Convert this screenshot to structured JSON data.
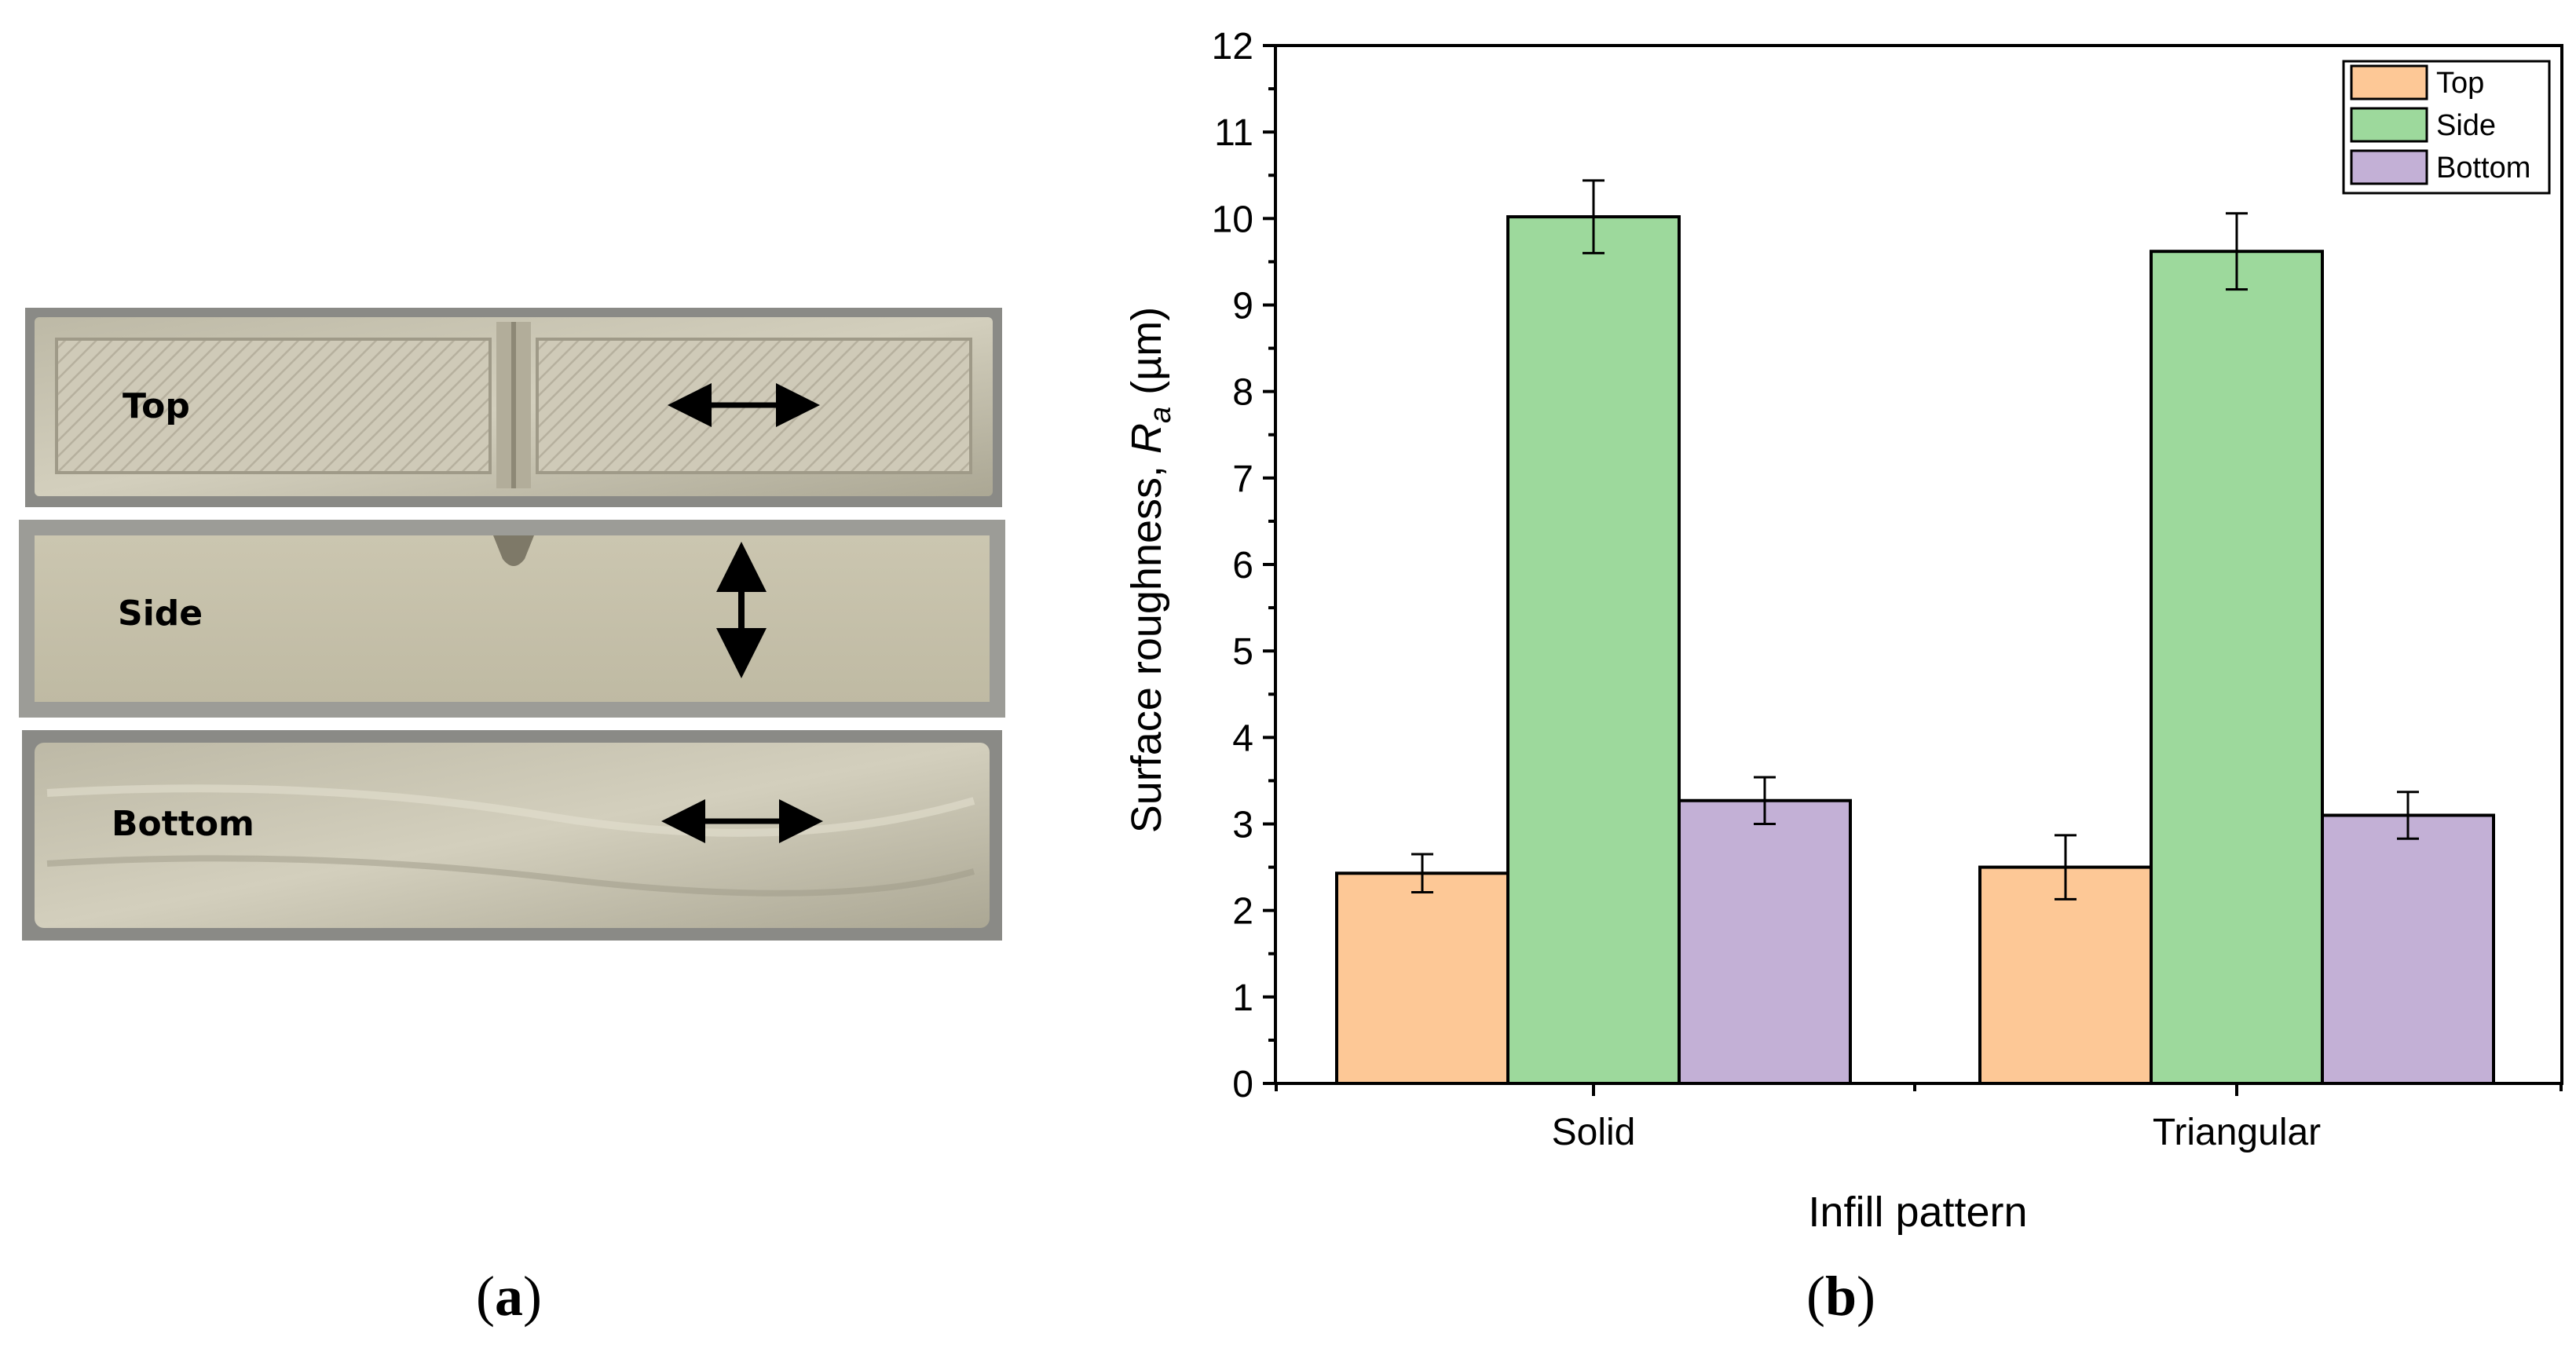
{
  "panel_a": {
    "caption_open": "(",
    "caption_letter": "a",
    "caption_close": ")",
    "specimens": [
      {
        "label": "Top",
        "arrow": "horizontal"
      },
      {
        "label": "Side",
        "arrow": "vertical"
      },
      {
        "label": "Bottom",
        "arrow": "horizontal"
      }
    ]
  },
  "panel_b": {
    "caption_open": "(",
    "caption_letter": "b",
    "caption_close": ")"
  },
  "colors": {
    "top": "#fdc896",
    "side": "#9dd99c",
    "bottom": "#c3b0d6"
  },
  "chart_data": {
    "type": "bar",
    "categories": [
      "Solid",
      "Triangular"
    ],
    "series": [
      {
        "name": "Top",
        "values": [
          2.43,
          2.5
        ],
        "errors": [
          0.22,
          0.37
        ]
      },
      {
        "name": "Side",
        "values": [
          10.02,
          9.62
        ],
        "errors": [
          0.42,
          0.44
        ]
      },
      {
        "name": "Bottom",
        "values": [
          3.27,
          3.1
        ],
        "errors": [
          0.27,
          0.27
        ]
      }
    ],
    "xlabel": "Infill pattern",
    "ylabel_prefix": "Surface roughness, ",
    "ylabel_symbol": "R",
    "ylabel_subscript": "a",
    "ylabel_unit": " (µm)",
    "ylim": [
      0,
      12
    ],
    "yticks": [
      0,
      1,
      2,
      3,
      4,
      5,
      6,
      7,
      8,
      9,
      10,
      11,
      12
    ],
    "legend_position": "top-right"
  }
}
